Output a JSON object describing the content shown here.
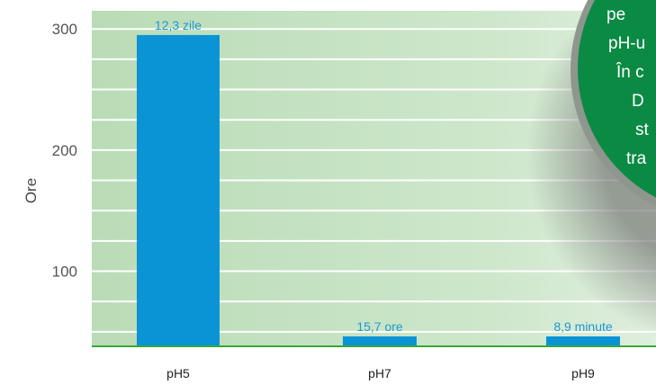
{
  "chart_data": {
    "type": "bar",
    "title": "",
    "xlabel": "",
    "ylabel": "Ore",
    "ylim": [
      38,
      315
    ],
    "yticks": [
      100,
      200,
      300
    ],
    "categories": [
      "pH5",
      "pH7",
      "pH9"
    ],
    "values": [
      295,
      15.7,
      0.15
    ],
    "data_labels": [
      "12,3 zile",
      "15,7 ore",
      "8,9 minute"
    ],
    "bar_color": "#0a94d6",
    "plot_background": "#c7e4c4",
    "baseline_color": "#3aa83a",
    "label_color": "#1f97d3",
    "grid": true
  },
  "callout": {
    "background": "#0b8a44",
    "lines": [
      "pe",
      "pH-u",
      "În c",
      "D",
      "st",
      "tra"
    ]
  }
}
